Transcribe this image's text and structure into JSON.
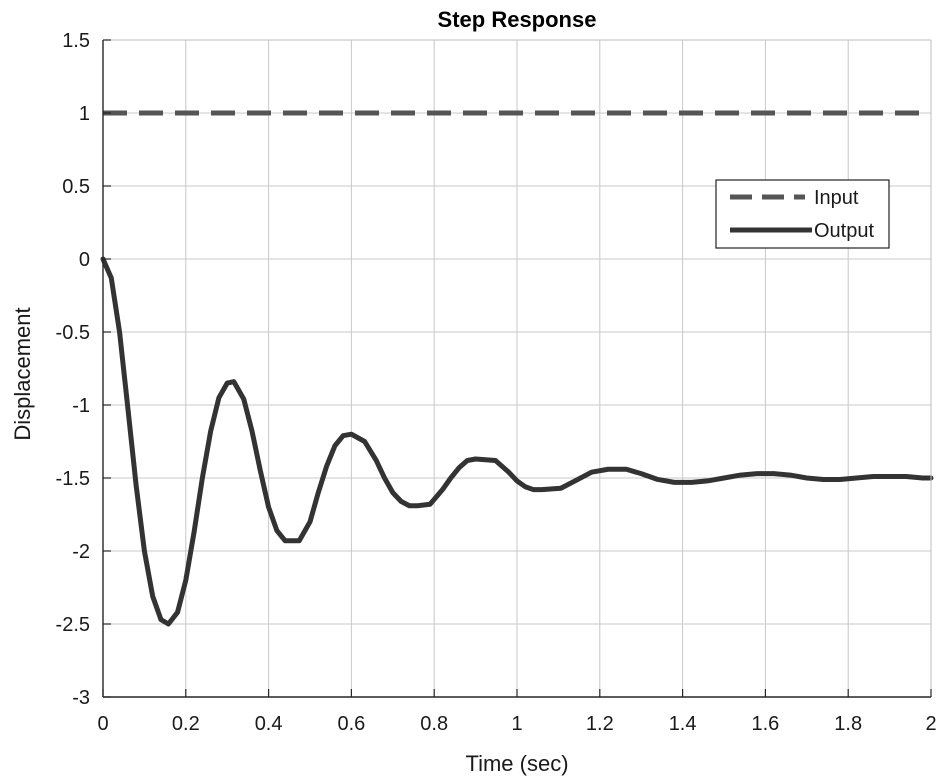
{
  "chart_data": {
    "type": "line",
    "title": "Step Response",
    "xlabel": "Time (sec)",
    "ylabel": "Displacement",
    "xlim": [
      0,
      2
    ],
    "ylim": [
      -3,
      1.5
    ],
    "xticks": [
      0,
      0.2,
      0.4,
      0.6,
      0.8,
      1,
      1.2,
      1.4,
      1.6,
      1.8,
      2
    ],
    "xtick_labels": [
      "0",
      "0.2",
      "0.4",
      "0.6",
      "0.8",
      "1",
      "1.2",
      "1.4",
      "1.6",
      "1.8",
      "2"
    ],
    "yticks": [
      -3,
      -2.5,
      -2,
      -1.5,
      -1,
      -0.5,
      0,
      0.5,
      1,
      1.5
    ],
    "ytick_labels": [
      "-3",
      "-2.5",
      "-2",
      "-1.5",
      "-1",
      "-0.5",
      "0",
      "0.5",
      "1",
      "1.5"
    ],
    "grid": true,
    "legend_position": "top-right",
    "series": [
      {
        "name": "Input",
        "style": "dashed",
        "color": "#555555",
        "x": [
          0,
          2
        ],
        "y": [
          1,
          1
        ]
      },
      {
        "name": "Output",
        "style": "solid",
        "color": "#333333",
        "x": [
          0,
          0.02,
          0.04,
          0.06,
          0.08,
          0.1,
          0.12,
          0.14,
          0.158,
          0.18,
          0.2,
          0.22,
          0.24,
          0.26,
          0.28,
          0.3,
          0.316,
          0.34,
          0.36,
          0.38,
          0.4,
          0.42,
          0.44,
          0.474,
          0.5,
          0.52,
          0.54,
          0.56,
          0.58,
          0.6,
          0.632,
          0.66,
          0.68,
          0.7,
          0.72,
          0.74,
          0.76,
          0.79,
          0.82,
          0.84,
          0.86,
          0.88,
          0.9,
          0.948,
          0.98,
          1.0,
          1.02,
          1.04,
          1.06,
          1.106,
          1.14,
          1.18,
          1.22,
          1.264,
          1.3,
          1.34,
          1.38,
          1.422,
          1.46,
          1.5,
          1.54,
          1.58,
          1.62,
          1.66,
          1.7,
          1.74,
          1.78,
          1.82,
          1.86,
          1.9,
          1.94,
          1.98,
          2.0
        ],
        "y": [
          0,
          -0.13,
          -0.5,
          -1.02,
          -1.55,
          -2.0,
          -2.31,
          -2.47,
          -2.5,
          -2.42,
          -2.2,
          -1.87,
          -1.5,
          -1.18,
          -0.95,
          -0.85,
          -0.84,
          -0.96,
          -1.18,
          -1.45,
          -1.7,
          -1.86,
          -1.93,
          -1.93,
          -1.8,
          -1.6,
          -1.42,
          -1.28,
          -1.21,
          -1.2,
          -1.25,
          -1.38,
          -1.5,
          -1.6,
          -1.66,
          -1.69,
          -1.69,
          -1.68,
          -1.58,
          -1.5,
          -1.43,
          -1.38,
          -1.37,
          -1.38,
          -1.46,
          -1.52,
          -1.56,
          -1.58,
          -1.58,
          -1.57,
          -1.52,
          -1.46,
          -1.44,
          -1.44,
          -1.47,
          -1.51,
          -1.53,
          -1.53,
          -1.52,
          -1.5,
          -1.48,
          -1.47,
          -1.47,
          -1.48,
          -1.5,
          -1.51,
          -1.51,
          -1.5,
          -1.49,
          -1.49,
          -1.49,
          -1.5,
          -1.5
        ]
      }
    ]
  }
}
